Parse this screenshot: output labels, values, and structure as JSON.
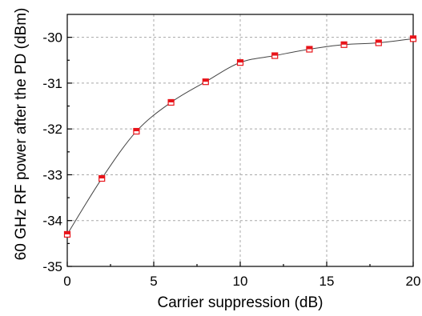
{
  "chart_data": {
    "type": "line",
    "title": "",
    "xlabel": "Carrier suppression (dB)",
    "ylabel": "60 GHz RF power after the PD (dBm)",
    "xlim": [
      0,
      20
    ],
    "ylim": [
      -35,
      -29.5
    ],
    "x_ticks": [
      0,
      5,
      10,
      15,
      20
    ],
    "y_ticks": [
      -35,
      -34,
      -33,
      -32,
      -31,
      -30
    ],
    "x_tick_labels": [
      "0",
      "5",
      "10",
      "15",
      "20"
    ],
    "y_tick_labels": [
      "-35",
      "-34",
      "-33",
      "-32",
      "-31",
      "-30"
    ],
    "grid": true,
    "legend": "none",
    "series": [
      {
        "marker": "half-filled-square",
        "marker_color": "#e8141a",
        "line_color": "#444444",
        "x": [
          0,
          2,
          4,
          6,
          8,
          10,
          12,
          14,
          16,
          18,
          20
        ],
        "y": [
          -34.3,
          -33.08,
          -32.05,
          -31.42,
          -30.97,
          -30.55,
          -30.4,
          -30.26,
          -30.16,
          -30.12,
          -30.03
        ]
      }
    ]
  }
}
